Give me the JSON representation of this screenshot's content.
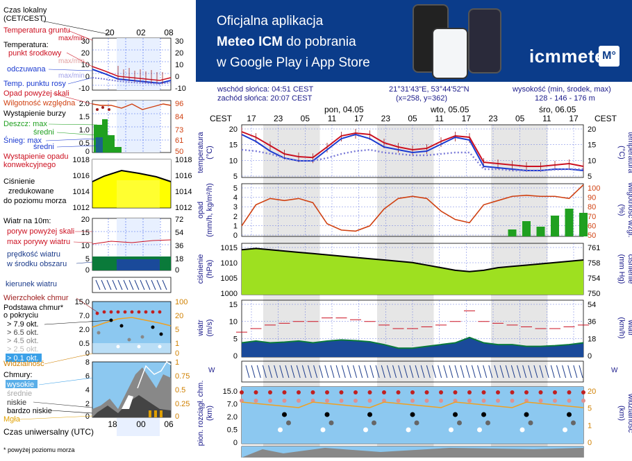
{
  "legend": {
    "local_time": "Czas lokalny",
    "local_time_tz": "(CET/CEST)",
    "hours_top": [
      "20",
      "02",
      "08"
    ],
    "soil_temp": "Temperatura gruntu",
    "soil_temp_sub": "max/min",
    "temperature": "Temperatura:",
    "center_point": "punkt środkowy",
    "center_point_sub": "max/min",
    "feels_like": "odczuwana",
    "feels_like_sub": "max/min",
    "dew_point": "Temp. punktu rosy",
    "precip_over_area": "Opad powyżej skali",
    "rel_humidity": "Wilgotność względna",
    "thunder": "Wystąpienie burzy",
    "rain_max": "Deszcz: max",
    "rain_mean": "średni",
    "snow_max": "Śnieg: max",
    "snow_mean": "średni",
    "conv_precip": "Wystąpienie opadu",
    "conv_precip2": "konwekcyjnego",
    "pressure": "Ciśnienie",
    "pressure2": "zredukowane",
    "pressure3": "do poziomu morza",
    "wind": "Wiatr na 10m:",
    "gust_over": "poryw powyżej skali",
    "max_gust": "max porywy wiatru",
    "mean_wind": "prędkość wiatru",
    "mean_wind2": "w środku obszaru",
    "wind_dir": "kierunek wiatru",
    "cloud_top": "Wierzchołek chmur",
    "cloud_base": "Podstawa chmur*",
    "cloud_base2": "o pokryciu",
    "okt1": "> 7.9 okt.",
    "okt2": "> 6.5 okt.",
    "okt3": "> 4.5 okt.",
    "okt4": "> 2.5 okt.",
    "okt5": "> 0.1 okt.",
    "visibility": "Widzialność",
    "clouds": "Chmury:",
    "high": "wysokie",
    "mid": "średnie",
    "low": "niskie",
    "very_low": "bardzo niskie",
    "fog": "Mgła",
    "utc": "Czas uniwersalny (UTC)",
    "utc_hours": [
      "18",
      "00",
      "06"
    ],
    "footnote": "* powyżej poziomu morza"
  },
  "mini_axes": {
    "temp_left": [
      "30",
      "20",
      "10",
      "0",
      "-10"
    ],
    "temp_right": [
      "30",
      "20",
      "10",
      "0",
      "-10"
    ],
    "precip_left": [
      "2.0",
      "1.5",
      "1.0",
      "0.5",
      "0"
    ],
    "precip_right": [
      "96",
      "84",
      "73",
      "61",
      "50"
    ],
    "press_left": [
      "1018",
      "1016",
      "1014",
      "1012"
    ],
    "press_right": [
      "1018",
      "1016",
      "1014",
      "1012"
    ],
    "wind_left": [
      "20",
      "15",
      "10",
      "5",
      "0"
    ],
    "wind_right": [
      "72",
      "54",
      "36",
      "18",
      "0"
    ],
    "cloud_left": [
      "15.0",
      "7.0",
      "2.0",
      "0.5",
      "0"
    ],
    "cloud_right": [
      "100",
      "20",
      "5",
      "1",
      "0"
    ],
    "cov_left": [
      "8",
      "6",
      "4",
      "2",
      "0"
    ],
    "cov_right": [
      "1",
      "0.75",
      "0.5",
      "0.25",
      "0"
    ]
  },
  "banner": {
    "line1": "Oficjalna aplikacja",
    "line2_bold": "Meteo ICM",
    "line2_rest": " do pobrania",
    "line3": "w Google Play i App Store",
    "brand": "icmmeteo",
    "brand_box": "M°"
  },
  "info": {
    "sunrise": "wschód słońca: 04:51 CEST",
    "sunset": "zachód słońca: 20:07 CEST",
    "coords": "21°31'43\"E, 53°44'52\"N",
    "grid": "(x=258, y=362)",
    "height_label": "wysokość (min, środek, max)",
    "height_value": "128 - 146 - 176 m"
  },
  "timeline": {
    "tz": "CEST",
    "hours": [
      "17",
      "23",
      "05",
      "11",
      "17",
      "23",
      "05",
      "11",
      "17",
      "23",
      "05",
      "11",
      "17"
    ],
    "days": [
      "pon, 04.05",
      "wto, 05.05",
      "śro, 06.05"
    ]
  },
  "panels": {
    "temp": {
      "left_title": "temperatura",
      "left_unit": "(°C)",
      "right_title": "temperatura",
      "right_unit": "(°C)",
      "ticks": [
        "20",
        "15",
        "10",
        "5"
      ]
    },
    "precip": {
      "left_title": "opad",
      "left_unit": "(mm/h, kg/m²/h)",
      "right_title": "wilgotność wzgl.",
      "right_unit": "(%)",
      "ticks_left": [
        "5",
        "4",
        "3",
        "2",
        "1",
        "0"
      ],
      "ticks_right": [
        "100",
        "90",
        "80",
        "70",
        "60",
        "50"
      ]
    },
    "pressure": {
      "left_title": "ciśnienie",
      "left_unit": "(hPa)",
      "right_title": "ciśnienie",
      "right_unit": "(mm Hg)",
      "ticks_left": [
        "1015",
        "1010",
        "1005",
        "1000"
      ],
      "ticks_right": [
        "761",
        "758",
        "754",
        "750"
      ]
    },
    "wind": {
      "left_title": "wiatr",
      "left_unit": "(m/s)",
      "right_title": "wiatr",
      "right_unit": "(km/h)",
      "ticks_left": [
        "15",
        "10",
        "5",
        "0"
      ],
      "ticks_right": [
        "54",
        "36",
        "18",
        "0"
      ]
    },
    "cloud": {
      "left_title": "pion. rozciągł. chm.",
      "left_unit": "(km)",
      "right_title": "widzialność",
      "right_unit": "(km)",
      "ticks_left": [
        "15.0",
        "7.0",
        "2.0",
        "0.5",
        "0"
      ],
      "ticks_right": [
        "20",
        "5",
        "1",
        "0"
      ]
    }
  },
  "colors": {
    "banner": "#0b3c8a",
    "temp": "#cc1020",
    "feels": "#1a3ad0",
    "dew": "#7a7ad8",
    "pressure": "#ffff00",
    "humidity": "#d04010",
    "precip": "#20a020",
    "wind_fill": "#0a7a3a"
  },
  "chart_data": [
    {
      "type": "line",
      "title": "temperatura",
      "ylabel": "(°C)",
      "x": [
        "17",
        "20",
        "23",
        "02",
        "05",
        "08",
        "11",
        "14",
        "17",
        "20",
        "23",
        "02",
        "05",
        "08",
        "11",
        "14",
        "17",
        "20",
        "23",
        "02",
        "05",
        "08",
        "11",
        "14",
        "17"
      ],
      "ylim": [
        4,
        23
      ],
      "series": [
        {
          "name": "punkt środkowy",
          "values": [
            20.5,
            18.5,
            15.5,
            12.5,
            11.5,
            11.2,
            15,
            19,
            20,
            19.5,
            16.5,
            15,
            14,
            14.5,
            17,
            19,
            18.5,
            9.5,
            9,
            8.5,
            8,
            8,
            8.5,
            9,
            8
          ]
        },
        {
          "name": "odczuwana",
          "values": [
            19.5,
            17,
            13.5,
            11,
            10,
            10,
            14,
            18,
            19.5,
            18,
            15,
            14,
            13,
            13.5,
            16,
            18.5,
            17.5,
            8,
            7.5,
            7,
            6.5,
            6.5,
            7,
            7,
            6.5
          ]
        },
        {
          "name": "Temp. punktu rosy",
          "values": [
            14,
            13.5,
            12.5,
            11,
            10,
            10,
            11,
            12.5,
            13.5,
            14,
            13,
            12.5,
            12,
            12,
            12.5,
            13,
            13,
            7,
            7,
            6.5,
            6.5,
            6.5,
            6.8,
            7,
            7
          ]
        }
      ]
    },
    {
      "type": "line",
      "title": "opad / wilgotność wzgl.",
      "ylabel": "(%)",
      "x": [
        "17",
        "20",
        "23",
        "02",
        "05",
        "08",
        "11",
        "14",
        "17",
        "20",
        "23",
        "02",
        "05",
        "08",
        "11",
        "14",
        "17",
        "20",
        "23",
        "02",
        "05",
        "08",
        "11",
        "14",
        "17"
      ],
      "ylim": [
        50,
        100
      ],
      "series": [
        {
          "name": "Wilgotność względna",
          "values": [
            60,
            80,
            86,
            84,
            86,
            82,
            62,
            56,
            55,
            60,
            76,
            86,
            88,
            86,
            74,
            66,
            63,
            80,
            84,
            88,
            89,
            88,
            88,
            86,
            99
          ]
        }
      ]
    },
    {
      "type": "area",
      "title": "ciśnienie",
      "ylabel": "(hPa)",
      "x": [
        "17",
        "20",
        "23",
        "02",
        "05",
        "08",
        "11",
        "14",
        "17",
        "20",
        "23",
        "02",
        "05",
        "08",
        "11",
        "14",
        "17",
        "20",
        "23",
        "02",
        "05",
        "08",
        "11",
        "14",
        "17"
      ],
      "ylim": [
        997,
        1017
      ],
      "series": [
        {
          "name": "Ciśnienie",
          "values": [
            1014.5,
            1015,
            1014.5,
            1014,
            1013.5,
            1013,
            1012.5,
            1012,
            1011.5,
            1011,
            1010.5,
            1010,
            1009.5,
            1008.5,
            1007.5,
            1006.5,
            1006,
            1006.5,
            1007.5,
            1008,
            1008.5,
            1009,
            1009.5,
            1010,
            1010.5
          ]
        }
      ]
    },
    {
      "type": "area",
      "title": "wiatr",
      "ylabel": "(m/s)",
      "x": [
        "17",
        "20",
        "23",
        "02",
        "05",
        "08",
        "11",
        "14",
        "17",
        "20",
        "23",
        "02",
        "05",
        "08",
        "11",
        "14",
        "17",
        "20",
        "23",
        "02",
        "05",
        "08",
        "11",
        "14",
        "17"
      ],
      "ylim": [
        0,
        16
      ],
      "series": [
        {
          "name": "prędkość wiatru",
          "values": [
            4,
            4.5,
            4,
            4.2,
            4.5,
            4,
            4.5,
            4.8,
            4.6,
            4.3,
            3.5,
            2.5,
            2.5,
            3,
            3.5,
            4,
            5.5,
            4,
            3.5,
            3.5,
            3,
            3,
            3.2,
            3.5,
            4
          ]
        },
        {
          "name": "max porywy wiatru",
          "values": [
            7,
            8,
            9,
            9.5,
            10,
            10,
            11,
            11,
            10.5,
            10,
            9,
            8,
            8,
            8.5,
            9,
            10,
            13,
            10,
            9.5,
            9,
            8.5,
            8,
            8,
            8.5,
            9
          ]
        }
      ]
    }
  ]
}
